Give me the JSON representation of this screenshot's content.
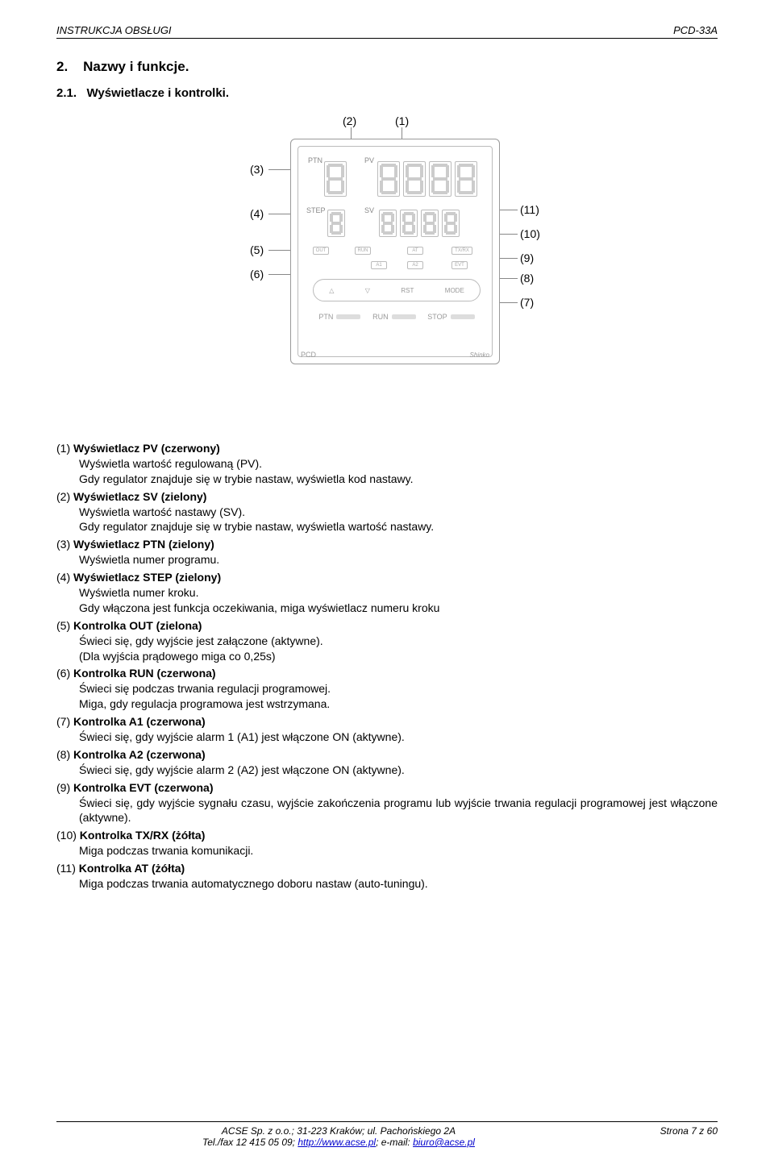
{
  "header": {
    "left": "INSTRUKCJA OBSŁUGI",
    "right": "PCD-33A"
  },
  "section": {
    "num": "2.",
    "title": "Nazwy i funkcje."
  },
  "subsection": {
    "num": "2.1.",
    "title": "Wyświetlacze i kontrolki."
  },
  "callouts": {
    "c1": "(1)",
    "c2": "(2)",
    "c3": "(3)",
    "c4": "(4)",
    "c5": "(5)",
    "c6": "(6)",
    "c7": "(7)",
    "c8": "(8)",
    "c9": "(9)",
    "c10": "(10)",
    "c11": "(11)"
  },
  "device_labels": {
    "ptn": "PTN",
    "pv": "PV",
    "step": "STEP",
    "sv": "SV",
    "out": "OUT",
    "run": "RUN",
    "at": "AT",
    "txrx": "TX/RX",
    "a1": "A1",
    "a2": "A2",
    "evt": "EVT",
    "rst": "RST",
    "mode": "MODE",
    "ptn2": "PTN",
    "run2": "RUN",
    "stop": "STOP",
    "pcd": "PCD",
    "shinko": "Shinko"
  },
  "items": [
    {
      "num": "(1)",
      "title": "Wyświetlacz PV (czerwony)",
      "lines": [
        "Wyświetla wartość regulowaną (PV).",
        "Gdy regulator znajduje się w trybie nastaw, wyświetla kod nastawy."
      ]
    },
    {
      "num": "(2)",
      "title": "Wyświetlacz SV (zielony)",
      "lines": [
        "Wyświetla wartość nastawy (SV).",
        "Gdy regulator znajduje się w trybie nastaw, wyświetla wartość nastawy."
      ]
    },
    {
      "num": "(3)",
      "title": "Wyświetlacz PTN (zielony)",
      "lines": [
        "Wyświetla numer programu."
      ]
    },
    {
      "num": "(4)",
      "title": "Wyświetlacz STEP (zielony)",
      "lines": [
        "Wyświetla numer kroku.",
        "Gdy włączona jest funkcja oczekiwania, miga wyświetlacz numeru kroku"
      ]
    },
    {
      "num": "(5)",
      "title": "Kontrolka OUT (zielona)",
      "lines": [
        "Świeci się, gdy wyjście jest załączone (aktywne).",
        "(Dla wyjścia prądowego miga co 0,25s)"
      ]
    },
    {
      "num": "(6)",
      "title": "Kontrolka RUN (czerwona)",
      "lines": [
        "Świeci się podczas trwania regulacji programowej.",
        "Miga, gdy regulacja programowa jest wstrzymana."
      ]
    },
    {
      "num": "(7)",
      "title": "Kontrolka A1 (czerwona)",
      "lines": [
        "Świeci się, gdy wyjście alarm 1 (A1) jest włączone ON (aktywne)."
      ]
    },
    {
      "num": "(8)",
      "title": "Kontrolka A2 (czerwona)",
      "lines": [
        "Świeci się, gdy wyjście alarm 2 (A2) jest włączone ON (aktywne)."
      ]
    },
    {
      "num": "(9)",
      "title": "Kontrolka EVT (czerwona)",
      "lines": [
        "Świeci się, gdy wyjście sygnału czasu, wyjście zakończenia programu lub wyjście trwania regulacji programowej jest włączone (aktywne)."
      ]
    },
    {
      "num": "(10)",
      "title": "Kontrolka TX/RX (żółta)",
      "lines": [
        "Miga podczas trwania komunikacji."
      ]
    },
    {
      "num": "(11)",
      "title": "Kontrolka AT (żółta)",
      "lines": [
        "Miga podczas trwania automatycznego doboru nastaw (auto-tuningu)."
      ]
    }
  ],
  "footer": {
    "line1_a": "ACSE Sp. z o.o.; 31-223 Kraków; ul. Pachońskiego 2A",
    "line2_a": "Tel./fax 12 415 05 09; ",
    "link1": "http://www.acse.pl",
    "line2_b": "; e-mail: ",
    "link2": "biuro@acse.pl",
    "page": "Strona 7 z 60"
  }
}
